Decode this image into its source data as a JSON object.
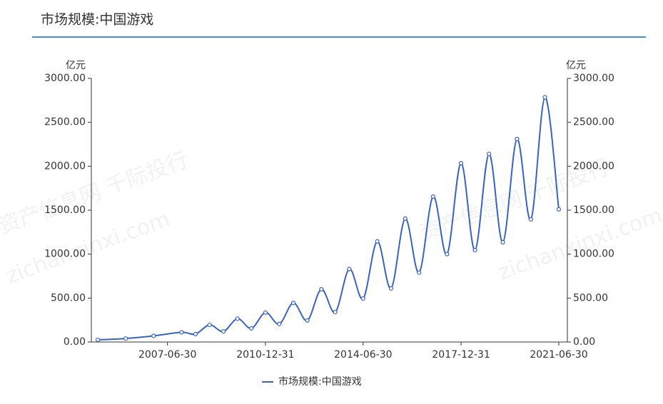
{
  "header": {
    "title": "市场规模:中国游戏"
  },
  "watermark": [
    "资产信息网 千际投行",
    "zichanxinxi.com"
  ],
  "chart_data": {
    "type": "line",
    "y_unit": "亿元",
    "y2_unit": "亿元",
    "x": [
      "2004-12-31",
      "2005-12-31",
      "2006-12-31",
      "2007-12-31",
      "2008-06-30",
      "2008-12-31",
      "2009-06-30",
      "2009-12-31",
      "2010-06-30",
      "2010-12-31",
      "2011-06-30",
      "2011-12-31",
      "2012-06-30",
      "2012-12-31",
      "2013-06-30",
      "2013-12-31",
      "2014-06-30",
      "2014-12-31",
      "2015-06-30",
      "2015-12-31",
      "2016-06-30",
      "2016-12-31",
      "2017-06-30",
      "2017-12-31",
      "2018-06-30",
      "2018-12-31",
      "2019-06-30",
      "2019-12-31",
      "2020-06-30",
      "2020-12-31",
      "2021-06-30"
    ],
    "series": [
      {
        "name": "市场规模:中国游戏",
        "color": "#3a62bf",
        "values": [
          25,
          40,
          70,
          110,
          90,
          195,
          120,
          265,
          155,
          335,
          205,
          445,
          245,
          600,
          340,
          830,
          495,
          1145,
          610,
          1405,
          790,
          1655,
          1000,
          2035,
          1045,
          2140,
          1135,
          2310,
          1395,
          2785,
          1510
        ]
      }
    ],
    "xticks": [
      "2007-06-30",
      "2010-12-31",
      "2014-06-30",
      "2017-12-31",
      "2021-06-30"
    ],
    "ylim": [
      0,
      3000
    ],
    "yticks": [
      {
        "value": 0,
        "label": "0.00"
      },
      {
        "value": 500,
        "label": "500.00"
      },
      {
        "value": 1000,
        "label": "1000.00"
      },
      {
        "value": 1500,
        "label": "1500.00"
      },
      {
        "value": 2000,
        "label": "2000.00"
      },
      {
        "value": 2500,
        "label": "2500.00"
      },
      {
        "value": 3000,
        "label": "3000.00"
      }
    ],
    "y2lim": [
      0,
      3000
    ],
    "y2ticks": [
      {
        "value": 0,
        "label": "0.00"
      },
      {
        "value": 500,
        "label": "500.00"
      },
      {
        "value": 1000,
        "label": "1000.00"
      },
      {
        "value": 1500,
        "label": "1500.00"
      },
      {
        "value": 2000,
        "label": "2000.00"
      },
      {
        "value": 2500,
        "label": "2500.00"
      },
      {
        "value": 3000,
        "label": "3000.00"
      }
    ],
    "smooth": true,
    "legend": "bottom"
  }
}
